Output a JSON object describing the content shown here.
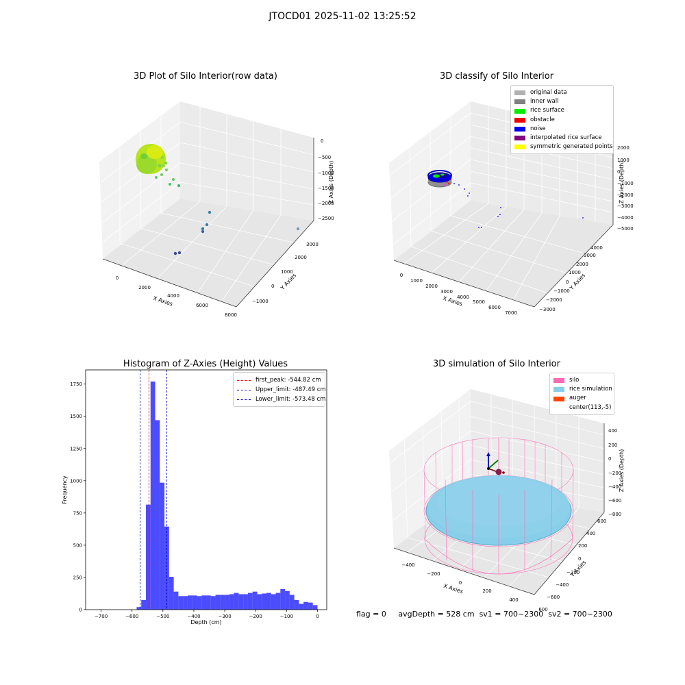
{
  "suptitle": "JTOCD01 2025-11-02 13:25:52",
  "panels": {
    "raw": {
      "title": "3D Plot of Silo Interior(row data)",
      "xlabel": "X Axies",
      "ylabel": "Y Axies",
      "zlabel": "Z Axies (Depth)",
      "xticks": [
        "0",
        "2000",
        "4000",
        "6000",
        "8000"
      ],
      "yticks": [
        "−1000",
        "0",
        "1000",
        "2000",
        "3000"
      ],
      "zticks": [
        "0",
        "−500",
        "−1000",
        "−1500",
        "−2000",
        "−2500"
      ]
    },
    "classify": {
      "title": "3D classify of Silo Interior",
      "xlabel": "X Axies",
      "ylabel": "Y Axies",
      "zlabel": "Z Axies (Depth)",
      "xticks": [
        "0",
        "1000",
        "2000",
        "3000",
        "4000",
        "5000",
        "6000",
        "7000"
      ],
      "yticks": [
        "−3000",
        "−2000",
        "−1000",
        "0",
        "1000",
        "2000",
        "3000",
        "4000"
      ],
      "zticks": [
        "2000",
        "1000",
        "0",
        "−1000",
        "−2000",
        "−3000",
        "−4000",
        "−5000"
      ],
      "legend": [
        {
          "label": "original data",
          "color": "#b0b0b0"
        },
        {
          "label": "inner wall",
          "color": "#808080"
        },
        {
          "label": "rice surface",
          "color": "#00ee00"
        },
        {
          "label": "obstacle",
          "color": "#ee0000"
        },
        {
          "label": "noise",
          "color": "#0000ee"
        },
        {
          "label": "interpolated rice surface",
          "color": "#800080"
        },
        {
          "label": "symmetric generated points",
          "color": "#ffff00"
        }
      ]
    },
    "simulation": {
      "title": "3D simulation of Silo Interior",
      "xlabel": "X Axies",
      "ylabel": "Y Axies",
      "zlabel": "Z Axies (Depth)",
      "xticks": [
        "−400",
        "−200",
        "0",
        "200",
        "400",
        "600"
      ],
      "yticks": [
        "−600",
        "−400",
        "−200",
        "0",
        "200",
        "400",
        "600"
      ],
      "zticks": [
        "400",
        "200",
        "0",
        "−200",
        "−400",
        "−600",
        "−800"
      ],
      "legend": [
        {
          "label": "silo",
          "color": "#ff69b4"
        },
        {
          "label": "rice simulation",
          "color": "#87ceeb"
        },
        {
          "label": "auger",
          "color": "#ff4500"
        },
        {
          "label": "center(113,-5)",
          "color": ""
        }
      ]
    }
  },
  "chart_data": [
    {
      "type": "bar",
      "title": "Histogram of Z-Axies (Height) Values",
      "xlabel": "Depth (cm)",
      "ylabel": "Frequency",
      "xlim": [
        -750,
        30
      ],
      "ylim": [
        0,
        1860
      ],
      "xticks": [
        -700,
        -600,
        -500,
        -400,
        -300,
        -200,
        -100,
        0
      ],
      "yticks": [
        0,
        250,
        500,
        750,
        1000,
        1250,
        1500,
        1750
      ],
      "bar_color": "#0000ff",
      "bin_width": 15,
      "bins_start": [
        -585,
        -570,
        -555,
        -540,
        -525,
        -510,
        -495,
        -480,
        -465,
        -450,
        -435,
        -420,
        -405,
        -390,
        -375,
        -360,
        -345,
        -330,
        -315,
        -300,
        -285,
        -270,
        -255,
        -240,
        -225,
        -210,
        -195,
        -180,
        -165,
        -150,
        -135,
        -120,
        -105,
        -90,
        -75,
        -60,
        -45,
        -30,
        -15
      ],
      "values": [
        20,
        75,
        815,
        1770,
        1470,
        985,
        645,
        255,
        140,
        105,
        105,
        110,
        110,
        105,
        110,
        110,
        105,
        115,
        115,
        115,
        120,
        130,
        120,
        120,
        130,
        140,
        120,
        125,
        130,
        120,
        130,
        160,
        145,
        115,
        75,
        45,
        60,
        55,
        35
      ],
      "lines": [
        {
          "name": "first_peak: -544.82 cm",
          "x": -544.82,
          "color": "#ff0000"
        },
        {
          "name": "Upper_limit: -487.49 cm",
          "x": -487.49,
          "color": "#0000cc"
        },
        {
          "name": "Lower_limit: -573.48 cm",
          "x": -573.48,
          "color": "#0000cc"
        }
      ],
      "legend": "top-right",
      "grid": false
    }
  ],
  "footer": {
    "flag": "flag = 0",
    "avg": "avgDepth = 528 cm",
    "sv1": "sv1 = 700~2300",
    "sv2": "sv2 = 700~2300"
  }
}
